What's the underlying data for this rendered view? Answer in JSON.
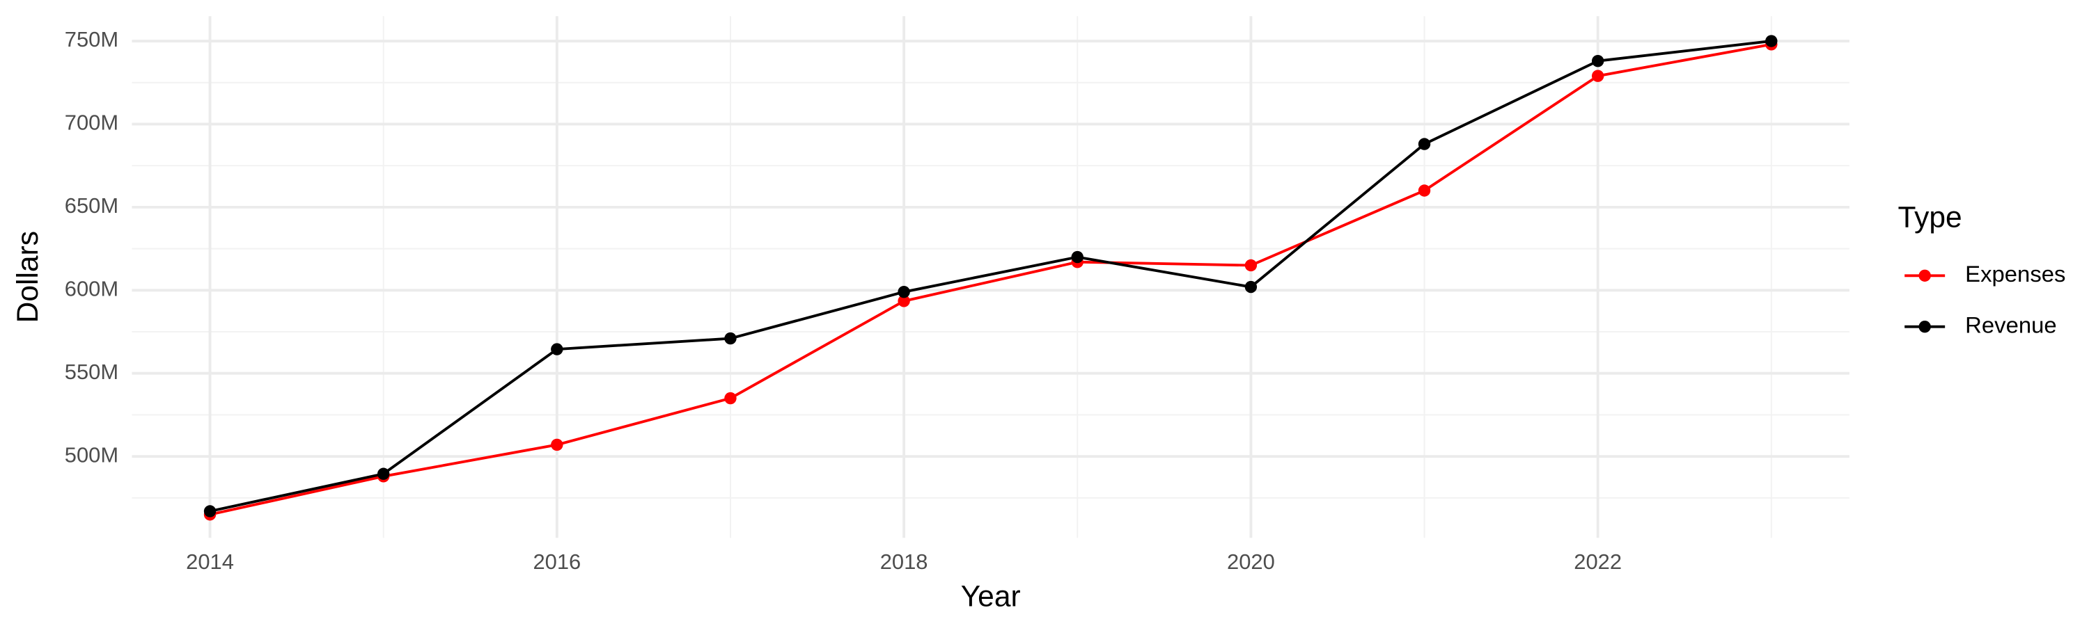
{
  "chart_data": {
    "type": "line",
    "x_label": "Year",
    "y_label": "Dollars",
    "legend_title": "Type",
    "x": [
      2014,
      2015,
      2016,
      2017,
      2018,
      2019,
      2020,
      2021,
      2022,
      2023
    ],
    "series": [
      {
        "name": "Expenses",
        "color": "#ff0000",
        "values": [
          465000000,
          488000000,
          507000000,
          535000000,
          593500000,
          617000000,
          615000000,
          660000000,
          729000000,
          748000000
        ]
      },
      {
        "name": "Revenue",
        "color": "#000000",
        "values": [
          467000000,
          489500000,
          564500000,
          571000000,
          599000000,
          620000000,
          602000000,
          688000000,
          738000000,
          750000000
        ]
      }
    ],
    "xlim": [
      2013.55,
      2023.45
    ],
    "xticks": [
      2014,
      2016,
      2018,
      2020,
      2022
    ],
    "ylim": [
      451000000,
      765000000
    ],
    "yticks": [
      {
        "value": 500000000,
        "label": "500M"
      },
      {
        "value": 550000000,
        "label": "550M"
      },
      {
        "value": 600000000,
        "label": "600M"
      },
      {
        "value": 650000000,
        "label": "650M"
      },
      {
        "value": 700000000,
        "label": "700M"
      },
      {
        "value": 750000000,
        "label": "750M"
      }
    ],
    "grid": true,
    "legend_position": "right"
  }
}
